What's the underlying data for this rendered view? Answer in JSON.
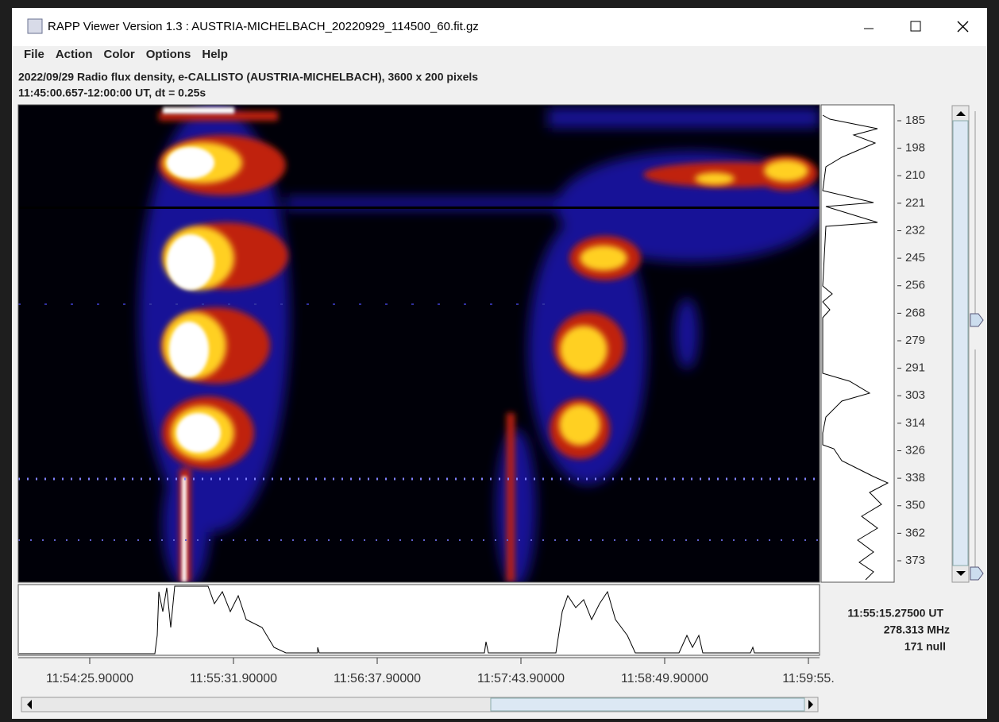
{
  "window": {
    "title": "RAPP Viewer Version 1.3 : AUSTRIA-MICHELBACH_20220929_114500_60.fit.gz"
  },
  "menu": [
    "File",
    "Action",
    "Color",
    "Options",
    "Help"
  ],
  "header": {
    "line1": "2022/09/29  Radio flux density, e-CALLISTO (AUSTRIA-MICHELBACH),  3600 x 200 pixels",
    "line2": "11:45:00.657-12:00:00 UT,  dt = 0.25s"
  },
  "frequency_ticks": [
    "185",
    "198",
    "210",
    "221",
    "232",
    "245",
    "256",
    "268",
    "279",
    "291",
    "303",
    "314",
    "326",
    "338",
    "350",
    "362",
    "373"
  ],
  "time_ticks": [
    "11:54:25.90000",
    "11:55:31.90000",
    "11:56:37.90000",
    "11:57:43.90000",
    "11:58:49.90000",
    "11:59:55."
  ],
  "cursor": {
    "time": "11:55:15.27500 UT",
    "frequency": "278.313 MHz",
    "value": "171 null"
  }
}
